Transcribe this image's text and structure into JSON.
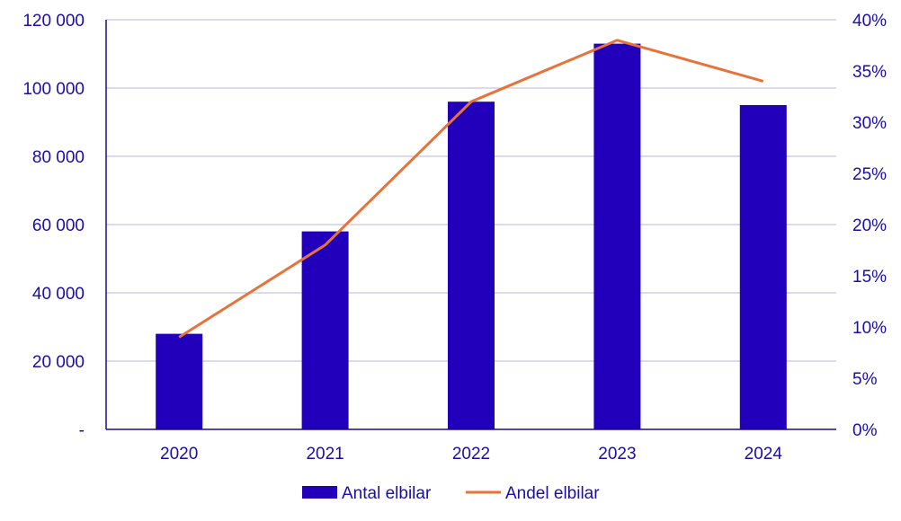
{
  "chart_data": {
    "type": "bar",
    "categories": [
      "2020",
      "2021",
      "2022",
      "2023",
      "2024"
    ],
    "series": [
      {
        "name": "Antal elbilar",
        "type": "bar",
        "axis": "left",
        "color": "#2200bb",
        "values": [
          28000,
          58000,
          96000,
          113000,
          95000
        ]
      },
      {
        "name": "Andel elbilar",
        "type": "line",
        "axis": "right",
        "color": "#e8733a",
        "values": [
          0.09,
          0.18,
          0.32,
          0.38,
          0.34
        ]
      }
    ],
    "left_axis": {
      "ylim": [
        0,
        120000
      ],
      "ticks": [
        0,
        20000,
        40000,
        60000,
        80000,
        100000,
        120000
      ],
      "tick_labels": [
        "-",
        "20 000",
        "40 000",
        "60 000",
        "80 000",
        "100 000",
        "120 000"
      ]
    },
    "right_axis": {
      "ylim": [
        0,
        0.4
      ],
      "ticks": [
        0,
        0.05,
        0.1,
        0.15,
        0.2,
        0.25,
        0.3,
        0.35,
        0.4
      ],
      "tick_labels": [
        "0%",
        "5%",
        "10%",
        "15%",
        "20%",
        "25%",
        "30%",
        "35%",
        "40%"
      ]
    },
    "grid": true,
    "legend_position": "bottom",
    "title": "",
    "xlabel": "",
    "ylabel": "",
    "colors": {
      "text": "#1a0dab",
      "grid": "#c8c4e8",
      "axis": "#1a0d8a"
    }
  }
}
